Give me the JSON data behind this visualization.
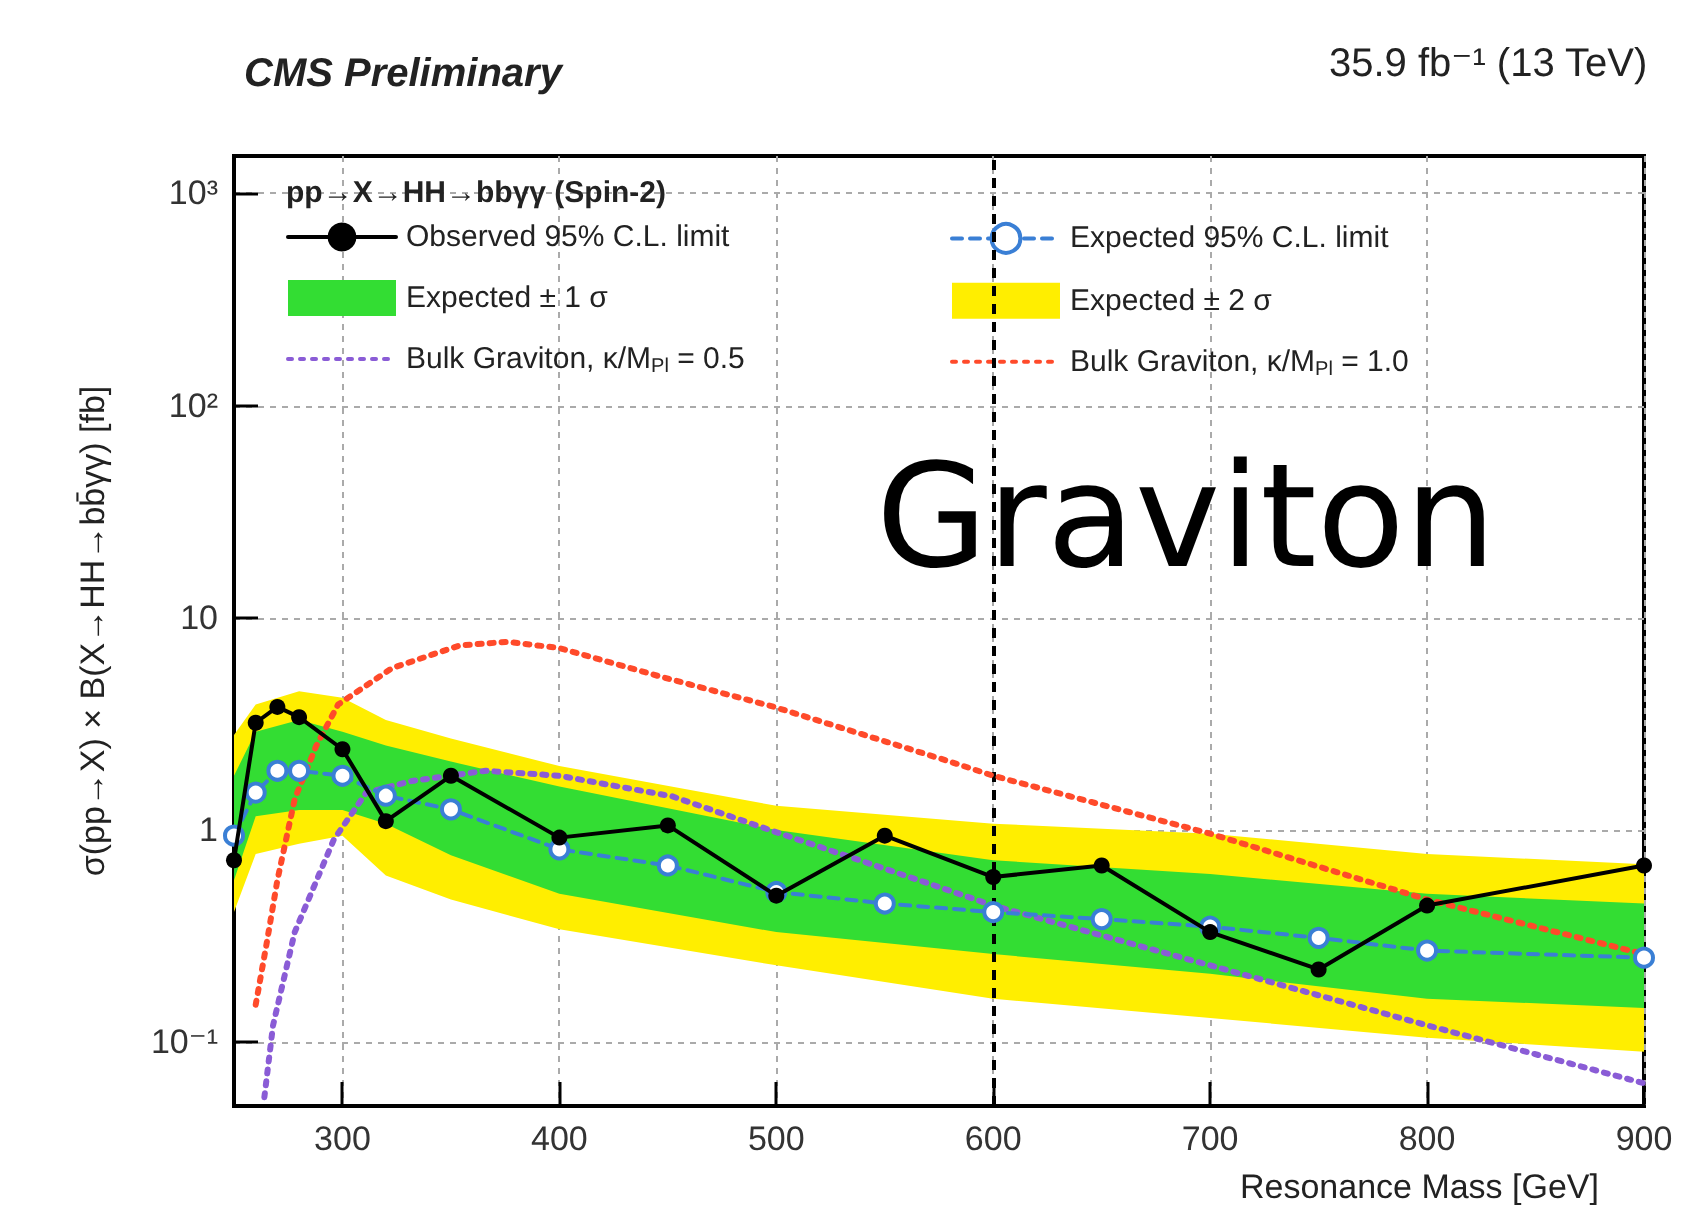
{
  "chart_data": {
    "type": "line",
    "title": "CMS Preliminary",
    "subtitle": "pp→X→HH→bbγγ (Spin-2)",
    "xlabel": "Resonance Mass [GeV]",
    "ylabel": "σ(pp→X) × B(X→HH→bb̄γγ) [fb]",
    "annotations": [
      "35.9 fb⁻¹ (13 TeV)",
      "Graviton"
    ],
    "xlim": [
      250,
      900
    ],
    "xticks": [
      300,
      400,
      500,
      600,
      700,
      800,
      900
    ],
    "ylim": [
      0.05,
      1500
    ],
    "yticks": [
      {
        "value": 0.1,
        "label": "10⁻¹"
      },
      1,
      10,
      {
        "value": 100,
        "label": "10²"
      },
      {
        "value": 1000,
        "label": "10³"
      }
    ],
    "log": "y",
    "grid": true,
    "legend": "top",
    "ref_lines": [
      {
        "axis": "x",
        "value": 600,
        "color": "#000000",
        "line_style": "dashed"
      }
    ],
    "series": [
      {
        "name": "Observed 95% C.L. limit",
        "type": "line",
        "color": "#000000",
        "marker": "circle",
        "line_style": "solid",
        "x": [
          250,
          260,
          270,
          280,
          300,
          320,
          350,
          400,
          450,
          500,
          550,
          600,
          650,
          700,
          750,
          800,
          900
        ],
        "values": [
          0.72,
          3.2,
          3.8,
          3.4,
          2.4,
          1.1,
          1.8,
          0.92,
          1.05,
          0.49,
          0.94,
          0.6,
          0.68,
          0.33,
          0.22,
          0.44,
          0.68
        ]
      },
      {
        "name": "Expected 95% C.L. limit",
        "type": "line",
        "color": "#3a7fd5",
        "marker": "circle",
        "line_style": "dashed",
        "x": [
          250,
          260,
          270,
          280,
          300,
          320,
          350,
          400,
          450,
          500,
          550,
          600,
          650,
          700,
          750,
          800,
          900
        ],
        "values": [
          0.94,
          1.5,
          1.9,
          1.9,
          1.8,
          1.45,
          1.25,
          0.81,
          0.68,
          0.51,
          0.45,
          0.41,
          0.38,
          0.35,
          0.31,
          0.27,
          0.25
        ]
      },
      {
        "name": "Expected ± 1 σ",
        "type": "line",
        "marker": "none",
        "line_style": "solid",
        "color": "#33dd33",
        "x": [
          250,
          260,
          280,
          300,
          320,
          350,
          400,
          500,
          600,
          700,
          800,
          900
        ],
        "values": [
          null,
          null,
          null,
          null,
          null,
          null,
          null,
          null,
          null,
          null,
          null,
          null
        ],
        "lower": [
          0.58,
          1.16,
          1.24,
          1.24,
          1.07,
          0.76,
          0.5,
          0.33,
          0.26,
          0.21,
          0.16,
          0.145
        ],
        "upper": [
          1.8,
          2.9,
          3.3,
          2.9,
          2.5,
          2.1,
          1.6,
          1.0,
          0.72,
          0.62,
          0.5,
          0.45
        ]
      },
      {
        "name": "Expected ± 2 σ",
        "type": "line",
        "marker": "none",
        "line_style": "solid",
        "color": "#ffee00",
        "x": [
          250,
          260,
          280,
          300,
          320,
          350,
          400,
          500,
          600,
          700,
          800,
          900
        ],
        "values": [
          null,
          null,
          null,
          null,
          null,
          null,
          null,
          null,
          null,
          null,
          null,
          null
        ],
        "lower": [
          0.41,
          0.77,
          0.86,
          0.94,
          0.61,
          0.47,
          0.34,
          0.23,
          0.16,
          0.13,
          0.105,
          0.09
        ],
        "upper": [
          2.8,
          3.9,
          4.5,
          4.2,
          3.3,
          2.7,
          2.0,
          1.3,
          1.07,
          0.96,
          0.77,
          0.69
        ]
      },
      {
        "name": "Bulk Graviton, κ/M$_{Pl}$ = 0.5",
        "type": "line",
        "color": "#8a5cd6",
        "marker": "none",
        "line_style": "dotted",
        "x": [
          264,
          268,
          278,
          296,
          311,
          332,
          366,
          400,
          452,
          502,
          570,
          600,
          700,
          800,
          900
        ],
        "values": [
          0.055,
          0.12,
          0.33,
          0.9,
          1.5,
          1.7,
          1.9,
          1.8,
          1.44,
          0.96,
          0.56,
          0.44,
          0.23,
          0.12,
          0.064
        ]
      },
      {
        "name": "Bulk Graviton, κ/M$_{Pl}$ = 1.0",
        "type": "line",
        "color": "#ff4a2a",
        "marker": "none",
        "line_style": "dotted",
        "x": [
          260,
          265,
          270,
          278,
          288,
          298,
          323,
          354,
          376,
          400,
          446,
          499,
          580,
          600,
          700,
          800,
          900
        ],
        "values": [
          0.15,
          0.29,
          0.58,
          1.4,
          2.5,
          3.9,
          5.8,
          7.4,
          7.7,
          7.2,
          5.3,
          3.8,
          2.1,
          1.8,
          0.96,
          0.47,
          0.26
        ]
      }
    ]
  }
}
